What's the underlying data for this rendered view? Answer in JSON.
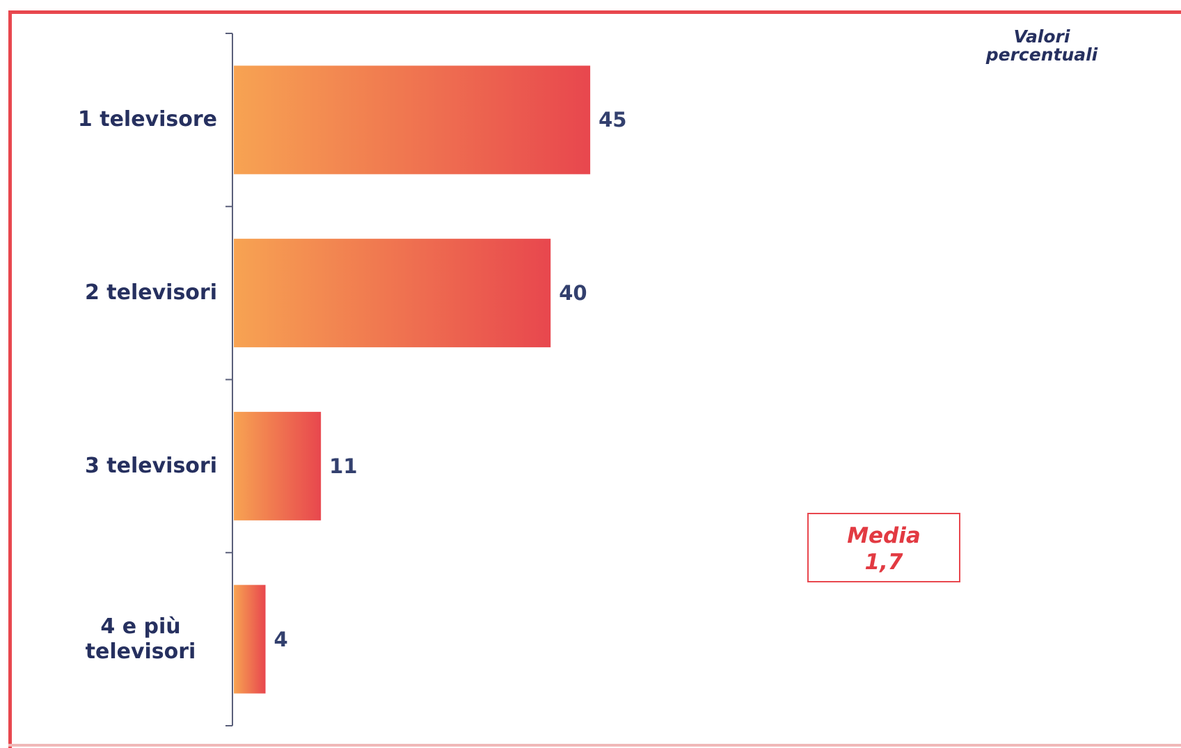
{
  "chart_data": {
    "type": "bar",
    "orientation": "horizontal",
    "categories": [
      "1 televisore",
      "2 televisori",
      "3 televisori",
      "4 e più\ntelevisori"
    ],
    "values": [
      45,
      40,
      11,
      4
    ],
    "value_labels": [
      "45",
      "40",
      "11",
      "4"
    ],
    "xlim": [
      0,
      100
    ],
    "grid": false,
    "legend": "none",
    "bar_gradient": [
      "#f7a352",
      "#e8474e"
    ],
    "note": "Valori\npercentuali",
    "annotation": {
      "label": "Media",
      "value": "1,7"
    }
  },
  "colors": {
    "frame": "#e8474e",
    "text": "#26305f",
    "annotation": "#e23a42"
  }
}
